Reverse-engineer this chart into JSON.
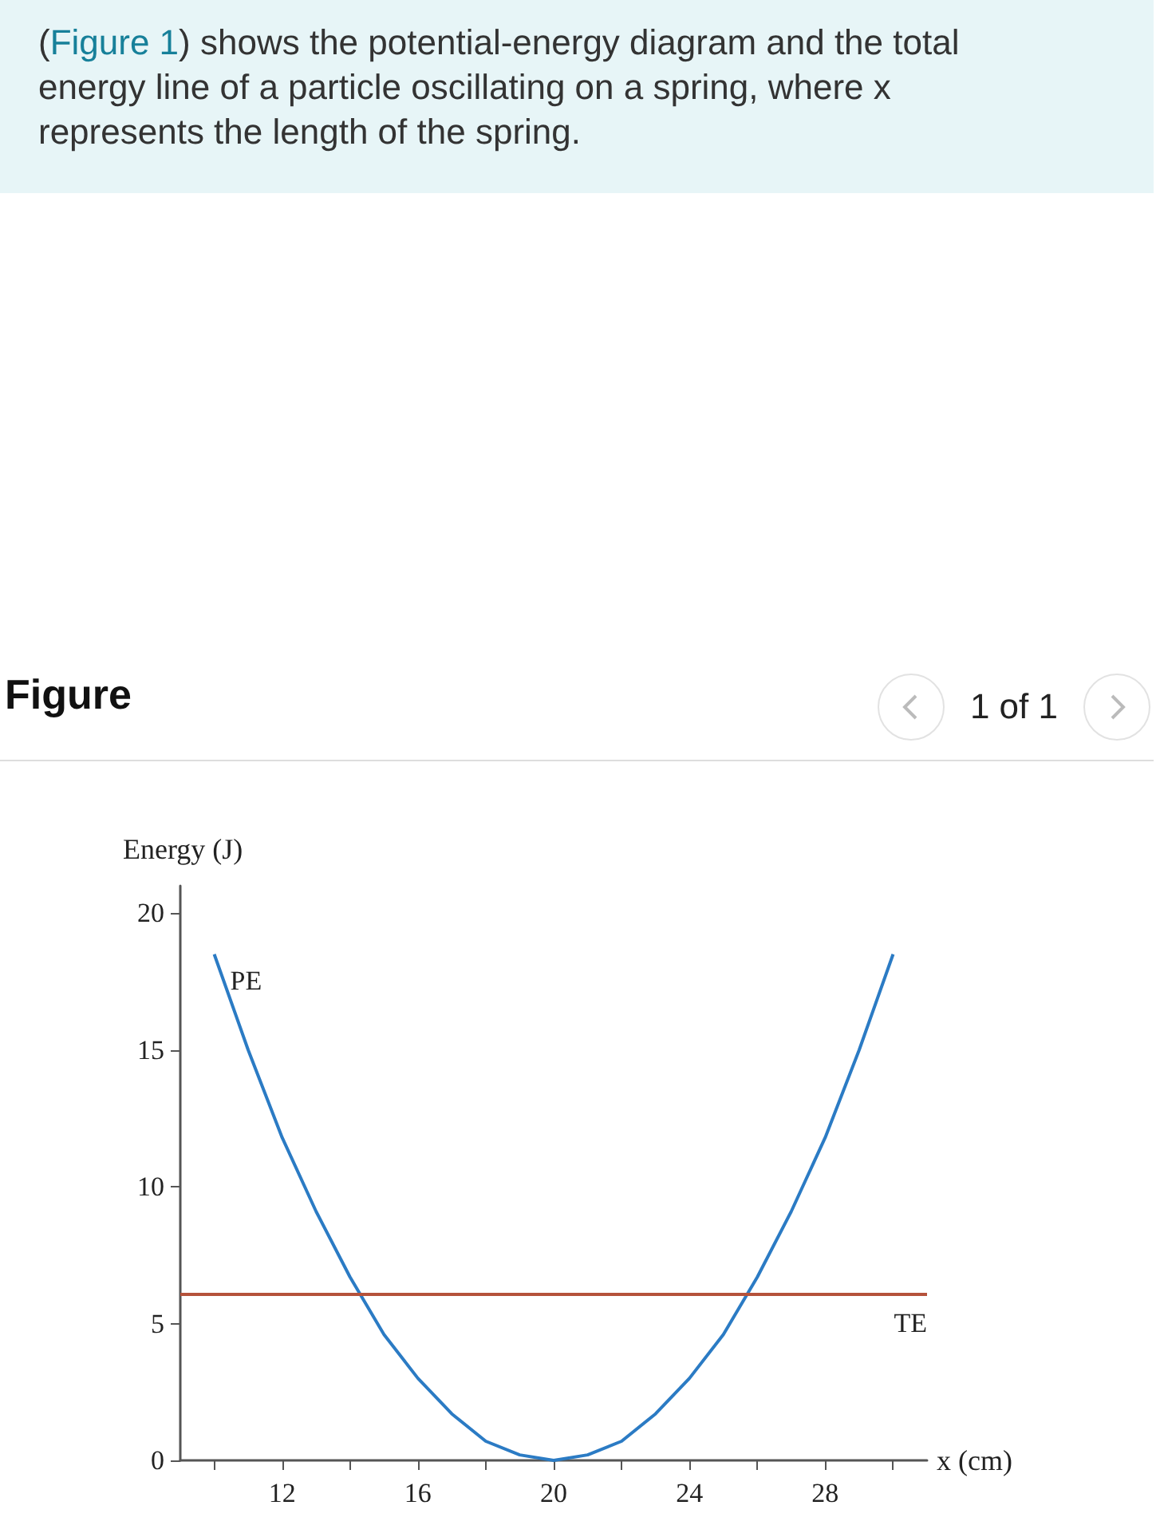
{
  "chart_data": {
    "type": "line",
    "title": "Figure",
    "annotations": [
      "(Figure 1) shows the potential-energy diagram and the total energy line of a particle oscillating on a spring, where x represents the length of the spring.",
      "1 of 1"
    ],
    "xlabel": "x (cm)",
    "ylabel": "Energy (J)",
    "x": [
      10,
      11,
      12,
      13,
      14,
      15,
      16,
      17,
      18,
      19,
      20,
      21,
      22,
      23,
      24,
      25,
      26,
      27,
      28,
      29,
      30
    ],
    "series": [
      {
        "name": "PE",
        "color": "#2b7bc4",
        "values": [
          18.5,
          15.0,
          11.8,
          9.1,
          6.7,
          4.6,
          3.0,
          1.7,
          0.7,
          0.2,
          0,
          0.2,
          0.7,
          1.7,
          3.0,
          4.6,
          6.7,
          9.1,
          11.8,
          15.0,
          18.5
        ]
      }
    ],
    "xlim": [
      9,
      31
    ],
    "ylim": [
      0,
      21
    ],
    "xticks": [
      {
        "value": 10,
        "label": null
      },
      12,
      {
        "value": 14,
        "label": null
      },
      16,
      {
        "value": 18,
        "label": null
      },
      20,
      {
        "value": 22,
        "label": null
      },
      24,
      {
        "value": 26,
        "label": null
      },
      28,
      {
        "value": 30,
        "label": null
      }
    ],
    "yticks": [
      0,
      5,
      10,
      15,
      20
    ],
    "ref_lines": [
      {
        "axis": "y",
        "value": 6.1,
        "label": "TE",
        "color": "#b5523b"
      }
    ]
  }
}
